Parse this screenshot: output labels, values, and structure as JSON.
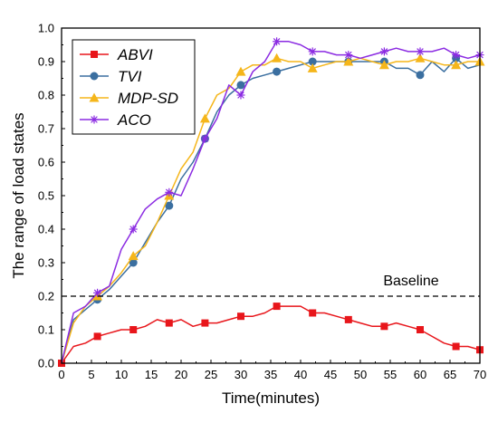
{
  "chart_data": {
    "type": "line",
    "xlabel": "Time(minutes)",
    "ylabel": "The range of load states",
    "xlim": [
      0,
      70
    ],
    "ylim": [
      0.0,
      1.0
    ],
    "xticks": [
      "0",
      "5",
      "10",
      "15",
      "20",
      "25",
      "30",
      "35",
      "40",
      "45",
      "50",
      "55",
      "60",
      "65",
      "70"
    ],
    "yticks": [
      "0.0",
      "0.1",
      "0.2",
      "0.3",
      "0.4",
      "0.5",
      "0.6",
      "0.7",
      "0.8",
      "0.9",
      "1.0"
    ],
    "legend_position": "top-left",
    "grid": false,
    "baseline": {
      "label": "Baseline",
      "y": 0.2
    },
    "series": [
      {
        "name": "ABVI",
        "color": "#e8161b",
        "marker": "square",
        "points": [
          [
            0,
            0.0
          ],
          [
            2,
            0.05
          ],
          [
            4,
            0.06
          ],
          [
            6,
            0.08
          ],
          [
            8,
            0.09
          ],
          [
            10,
            0.1
          ],
          [
            12,
            0.1
          ],
          [
            14,
            0.11
          ],
          [
            16,
            0.13
          ],
          [
            18,
            0.12
          ],
          [
            20,
            0.13
          ],
          [
            22,
            0.11
          ],
          [
            24,
            0.12
          ],
          [
            26,
            0.12
          ],
          [
            28,
            0.13
          ],
          [
            30,
            0.14
          ],
          [
            32,
            0.14
          ],
          [
            34,
            0.15
          ],
          [
            36,
            0.17
          ],
          [
            38,
            0.17
          ],
          [
            40,
            0.17
          ],
          [
            42,
            0.15
          ],
          [
            44,
            0.15
          ],
          [
            46,
            0.14
          ],
          [
            48,
            0.13
          ],
          [
            50,
            0.12
          ],
          [
            52,
            0.11
          ],
          [
            54,
            0.11
          ],
          [
            56,
            0.12
          ],
          [
            58,
            0.11
          ],
          [
            60,
            0.1
          ],
          [
            62,
            0.08
          ],
          [
            64,
            0.06
          ],
          [
            66,
            0.05
          ],
          [
            68,
            0.05
          ],
          [
            70,
            0.04
          ]
        ],
        "marker_x": [
          0,
          6,
          12,
          18,
          24,
          30,
          36,
          42,
          48,
          54,
          60,
          66,
          70
        ]
      },
      {
        "name": "TVI",
        "color": "#3b6fa0",
        "marker": "circle",
        "points": [
          [
            0,
            0.0
          ],
          [
            2,
            0.13
          ],
          [
            4,
            0.16
          ],
          [
            6,
            0.19
          ],
          [
            8,
            0.22
          ],
          [
            10,
            0.26
          ],
          [
            12,
            0.3
          ],
          [
            14,
            0.36
          ],
          [
            16,
            0.42
          ],
          [
            18,
            0.47
          ],
          [
            20,
            0.55
          ],
          [
            22,
            0.6
          ],
          [
            24,
            0.67
          ],
          [
            26,
            0.75
          ],
          [
            28,
            0.8
          ],
          [
            30,
            0.83
          ],
          [
            32,
            0.85
          ],
          [
            34,
            0.86
          ],
          [
            36,
            0.87
          ],
          [
            38,
            0.88
          ],
          [
            40,
            0.89
          ],
          [
            42,
            0.9
          ],
          [
            44,
            0.9
          ],
          [
            46,
            0.9
          ],
          [
            48,
            0.9
          ],
          [
            50,
            0.9
          ],
          [
            52,
            0.9
          ],
          [
            54,
            0.9
          ],
          [
            56,
            0.88
          ],
          [
            58,
            0.88
          ],
          [
            60,
            0.86
          ],
          [
            62,
            0.9
          ],
          [
            64,
            0.87
          ],
          [
            66,
            0.91
          ],
          [
            68,
            0.88
          ],
          [
            70,
            0.89
          ]
        ],
        "marker_x": [
          6,
          12,
          18,
          24,
          30,
          36,
          42,
          48,
          54,
          60,
          66
        ]
      },
      {
        "name": "MDP-SD",
        "color": "#f5b61a",
        "marker": "triangle",
        "points": [
          [
            0,
            0.0
          ],
          [
            2,
            0.12
          ],
          [
            4,
            0.17
          ],
          [
            6,
            0.2
          ],
          [
            8,
            0.23
          ],
          [
            10,
            0.27
          ],
          [
            12,
            0.32
          ],
          [
            14,
            0.35
          ],
          [
            16,
            0.42
          ],
          [
            18,
            0.5
          ],
          [
            20,
            0.58
          ],
          [
            22,
            0.63
          ],
          [
            24,
            0.73
          ],
          [
            26,
            0.8
          ],
          [
            28,
            0.82
          ],
          [
            30,
            0.87
          ],
          [
            32,
            0.89
          ],
          [
            34,
            0.89
          ],
          [
            36,
            0.91
          ],
          [
            38,
            0.9
          ],
          [
            40,
            0.9
          ],
          [
            42,
            0.88
          ],
          [
            44,
            0.89
          ],
          [
            46,
            0.9
          ],
          [
            48,
            0.9
          ],
          [
            50,
            0.91
          ],
          [
            52,
            0.9
          ],
          [
            54,
            0.89
          ],
          [
            56,
            0.9
          ],
          [
            58,
            0.9
          ],
          [
            60,
            0.91
          ],
          [
            62,
            0.9
          ],
          [
            64,
            0.89
          ],
          [
            66,
            0.89
          ],
          [
            68,
            0.9
          ],
          [
            70,
            0.9
          ]
        ],
        "marker_x": [
          6,
          12,
          18,
          24,
          30,
          36,
          42,
          48,
          54,
          60,
          66,
          70
        ]
      },
      {
        "name": "ACO",
        "color": "#8b2be2",
        "marker": "asterisk",
        "points": [
          [
            0,
            0.0
          ],
          [
            2,
            0.15
          ],
          [
            4,
            0.17
          ],
          [
            6,
            0.21
          ],
          [
            8,
            0.23
          ],
          [
            10,
            0.34
          ],
          [
            12,
            0.4
          ],
          [
            14,
            0.46
          ],
          [
            16,
            0.49
          ],
          [
            18,
            0.51
          ],
          [
            20,
            0.5
          ],
          [
            22,
            0.58
          ],
          [
            24,
            0.67
          ],
          [
            26,
            0.73
          ],
          [
            28,
            0.83
          ],
          [
            30,
            0.8
          ],
          [
            32,
            0.87
          ],
          [
            34,
            0.9
          ],
          [
            36,
            0.96
          ],
          [
            38,
            0.96
          ],
          [
            40,
            0.95
          ],
          [
            42,
            0.93
          ],
          [
            44,
            0.93
          ],
          [
            46,
            0.92
          ],
          [
            48,
            0.92
          ],
          [
            50,
            0.91
          ],
          [
            52,
            0.92
          ],
          [
            54,
            0.93
          ],
          [
            56,
            0.94
          ],
          [
            58,
            0.93
          ],
          [
            60,
            0.93
          ],
          [
            62,
            0.93
          ],
          [
            64,
            0.94
          ],
          [
            66,
            0.92
          ],
          [
            68,
            0.91
          ],
          [
            70,
            0.92
          ]
        ],
        "marker_x": [
          6,
          12,
          18,
          24,
          30,
          36,
          42,
          48,
          54,
          60,
          66,
          70
        ]
      }
    ]
  }
}
